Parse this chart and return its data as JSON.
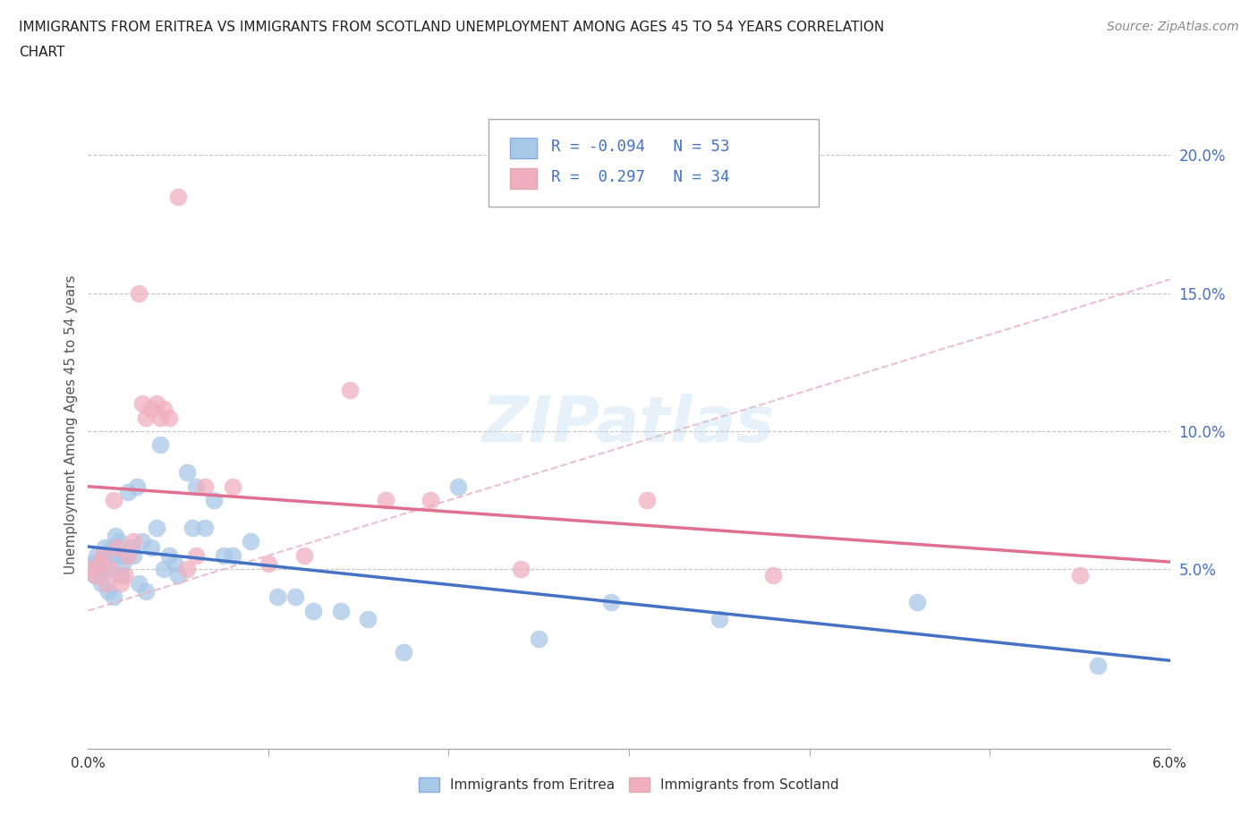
{
  "title_line1": "IMMIGRANTS FROM ERITREA VS IMMIGRANTS FROM SCOTLAND UNEMPLOYMENT AMONG AGES 45 TO 54 YEARS CORRELATION",
  "title_line2": "CHART",
  "source": "Source: ZipAtlas.com",
  "ylabel": "Unemployment Among Ages 45 to 54 years",
  "xlim": [
    0.0,
    6.0
  ],
  "ylim": [
    -1.5,
    22.0
  ],
  "legend_eritrea": "Immigrants from Eritrea",
  "legend_scotland": "Immigrants from Scotland",
  "r_eritrea": -0.094,
  "n_eritrea": 53,
  "r_scotland": 0.297,
  "n_scotland": 34,
  "color_eritrea": "#a8c8e8",
  "color_scotland": "#f0afc0",
  "color_trend_eritrea": "#4472c4",
  "color_trend_scotland": "#e07090",
  "color_trend_scotland_dashed": "#e8b0c0",
  "watermark": "ZIPatlas",
  "eritrea_x": [
    0.02,
    0.03,
    0.04,
    0.05,
    0.06,
    0.07,
    0.08,
    0.09,
    0.1,
    0.11,
    0.12,
    0.13,
    0.14,
    0.15,
    0.16,
    0.17,
    0.18,
    0.19,
    0.2,
    0.22,
    0.24,
    0.25,
    0.27,
    0.28,
    0.3,
    0.32,
    0.35,
    0.38,
    0.4,
    0.42,
    0.45,
    0.48,
    0.5,
    0.55,
    0.58,
    0.6,
    0.65,
    0.7,
    0.75,
    0.8,
    0.9,
    1.05,
    1.15,
    1.25,
    1.4,
    1.55,
    1.75,
    2.05,
    2.5,
    2.9,
    3.5,
    4.6,
    5.6
  ],
  "eritrea_y": [
    5.0,
    5.2,
    4.8,
    5.5,
    5.0,
    4.5,
    5.2,
    5.8,
    5.0,
    4.2,
    5.5,
    5.8,
    4.0,
    6.2,
    5.5,
    6.0,
    4.8,
    5.2,
    5.5,
    7.8,
    5.8,
    5.5,
    8.0,
    4.5,
    6.0,
    4.2,
    5.8,
    6.5,
    9.5,
    5.0,
    5.5,
    5.2,
    4.8,
    8.5,
    6.5,
    8.0,
    6.5,
    7.5,
    5.5,
    5.5,
    6.0,
    4.0,
    4.0,
    3.5,
    3.5,
    3.2,
    2.0,
    8.0,
    2.5,
    3.8,
    3.2,
    3.8,
    1.5
  ],
  "scotland_x": [
    0.02,
    0.04,
    0.06,
    0.08,
    0.1,
    0.12,
    0.14,
    0.16,
    0.18,
    0.2,
    0.22,
    0.25,
    0.28,
    0.3,
    0.32,
    0.35,
    0.38,
    0.4,
    0.42,
    0.45,
    0.5,
    0.55,
    0.6,
    0.65,
    0.8,
    1.0,
    1.2,
    1.45,
    1.65,
    1.9,
    2.4,
    3.1,
    3.8,
    5.5
  ],
  "scotland_y": [
    5.0,
    4.8,
    5.2,
    5.5,
    4.5,
    5.0,
    7.5,
    5.8,
    4.5,
    4.8,
    5.5,
    6.0,
    15.0,
    11.0,
    10.5,
    10.8,
    11.0,
    10.5,
    10.8,
    10.5,
    18.5,
    5.0,
    5.5,
    8.0,
    8.0,
    5.2,
    5.5,
    11.5,
    7.5,
    7.5,
    5.0,
    7.5,
    4.8,
    4.8
  ]
}
